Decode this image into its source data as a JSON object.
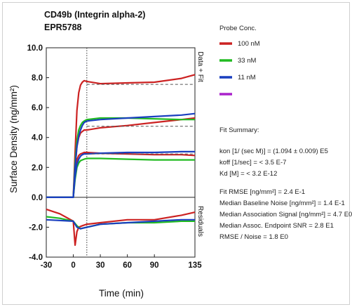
{
  "chart_data": {
    "type": "line",
    "title": "CD49b (Integrin alpha-2)",
    "subtitle": "EPR5788",
    "xlabel": "Time (min)",
    "ylabel": "Surface Density (ng/mm²)",
    "xlim": [
      -30,
      135
    ],
    "ylim": [
      -4.0,
      10.0
    ],
    "x_ticks": [
      "-30",
      "0",
      "30",
      "60",
      "90",
      "135"
    ],
    "x_tick_values": [
      -30,
      0,
      30,
      60,
      90,
      135
    ],
    "y_ticks": [
      "10.0",
      "8.0",
      "6.0",
      "4.0",
      "2.0",
      "0.0",
      "-2.0",
      "-4.0"
    ],
    "y_tick_values": [
      10,
      8,
      6,
      4,
      2,
      0,
      -2,
      -4
    ],
    "grid": false,
    "vertical_marker_x": 15,
    "zero_line_y": 0,
    "side_labels": {
      "upper": "Data + Fit",
      "lower": "Residuals"
    },
    "legend": {
      "title": "Probe Conc.",
      "entries": [
        {
          "label": "100 nM",
          "color": "#cc2222"
        },
        {
          "label": "33 nM",
          "color": "#22bb22"
        },
        {
          "label": "11 nM",
          "color": "#1a3fbf"
        },
        {
          "label": "",
          "color": "#aa22cc"
        }
      ]
    },
    "series": [
      {
        "name": "100 nM",
        "color": "#cc2222",
        "x": [
          -30,
          0,
          2,
          4,
          6,
          8,
          10,
          12,
          15,
          30,
          60,
          90,
          120,
          135
        ],
        "y": [
          0.0,
          0.0,
          3.0,
          5.8,
          7.0,
          7.5,
          7.7,
          7.8,
          7.75,
          7.6,
          7.65,
          7.7,
          7.95,
          8.2
        ]
      },
      {
        "name": "100 nM",
        "color": "#cc2222",
        "x": [
          -30,
          0,
          2,
          4,
          6,
          8,
          10,
          12,
          15,
          30,
          60,
          90,
          120,
          135
        ],
        "y": [
          0.0,
          0.0,
          2.0,
          3.4,
          4.0,
          4.3,
          4.4,
          4.5,
          4.5,
          4.65,
          4.8,
          5.0,
          5.2,
          5.3
        ]
      },
      {
        "name": "100 nM",
        "color": "#cc2222",
        "x": [
          -30,
          0,
          2,
          4,
          6,
          8,
          10,
          12,
          15,
          30,
          60,
          90,
          120,
          135
        ],
        "y": [
          0.0,
          0.0,
          1.5,
          2.5,
          2.8,
          2.9,
          2.95,
          3.0,
          3.0,
          2.95,
          2.9,
          2.85,
          2.85,
          2.8
        ]
      },
      {
        "name": "33 nM",
        "color": "#22bb22",
        "x": [
          -30,
          0,
          2,
          4,
          6,
          8,
          10,
          12,
          15,
          30,
          60,
          90,
          120,
          135
        ],
        "y": [
          0.0,
          0.0,
          2.3,
          3.8,
          4.5,
          4.8,
          5.0,
          5.1,
          5.2,
          5.3,
          5.3,
          5.25,
          5.2,
          5.2
        ]
      },
      {
        "name": "33 nM",
        "color": "#22bb22",
        "x": [
          -30,
          0,
          2,
          4,
          6,
          8,
          10,
          12,
          15,
          30,
          60,
          90,
          120,
          135
        ],
        "y": [
          0.0,
          0.0,
          1.2,
          2.0,
          2.3,
          2.45,
          2.5,
          2.55,
          2.6,
          2.6,
          2.55,
          2.5,
          2.5,
          2.5
        ]
      },
      {
        "name": "11 nM",
        "color": "#1a3fbf",
        "x": [
          -30,
          0,
          2,
          4,
          6,
          8,
          10,
          12,
          15,
          30,
          60,
          90,
          120,
          135
        ],
        "y": [
          0.0,
          0.0,
          2.0,
          3.4,
          4.1,
          4.5,
          4.8,
          5.0,
          5.1,
          5.2,
          5.3,
          5.4,
          5.5,
          5.6
        ]
      },
      {
        "name": "11 nM",
        "color": "#1a3fbf",
        "x": [
          -30,
          0,
          2,
          4,
          6,
          8,
          10,
          12,
          15,
          30,
          60,
          90,
          120,
          135
        ],
        "y": [
          0.0,
          0.0,
          1.4,
          2.2,
          2.55,
          2.75,
          2.85,
          2.9,
          2.9,
          2.95,
          3.0,
          3.0,
          3.05,
          3.05
        ]
      },
      {
        "name": "100 nM residual",
        "color": "#cc2222",
        "x": [
          -30,
          -15,
          0,
          2,
          4,
          6,
          10,
          15,
          30,
          60,
          90,
          120,
          135
        ],
        "y": [
          -0.8,
          -1.1,
          -1.6,
          -3.2,
          -2.3,
          -2.0,
          -1.9,
          -1.8,
          -1.7,
          -1.5,
          -1.5,
          -1.2,
          -1.0
        ]
      },
      {
        "name": "33 nM residual",
        "color": "#22bb22",
        "x": [
          -30,
          -15,
          0,
          4,
          8,
          15,
          30,
          60,
          90,
          120,
          135
        ],
        "y": [
          -1.3,
          -1.4,
          -1.6,
          -1.9,
          -2.1,
          -2.0,
          -1.8,
          -1.7,
          -1.7,
          -1.6,
          -1.6
        ]
      },
      {
        "name": "11 nM residual",
        "color": "#1a3fbf",
        "x": [
          -30,
          0,
          4,
          8,
          15,
          30,
          60,
          90,
          120,
          135
        ],
        "y": [
          -1.5,
          -1.6,
          -2.0,
          -2.1,
          -2.0,
          -1.8,
          -1.7,
          -1.6,
          -1.5,
          -1.5
        ]
      }
    ],
    "fits": [
      {
        "y": 7.55,
        "from": 15,
        "to": 135
      },
      {
        "y": 4.75,
        "from": 15,
        "to": 135
      },
      {
        "y": 2.9,
        "from": 15,
        "to": 135
      }
    ]
  },
  "summary": {
    "title": "Fit Summary:",
    "lines": [
      "kon  [1/ (sec M)]  =  (1.094 ± 0.009) E5",
      "koff  [1/sec]  =  < 3.5 E-7",
      "Kd  [M]  =  < 3.2 E-12",
      "",
      "Fit RMSE [ng/mm²]  =  2.4 E-1",
      "Median Baseline Noise [ng/mm²]  =  1.4 E-1",
      "Median Association Signal [ng/mm²]  =  4.7 E0",
      "Median Assoc. Endpoint SNR  =  2.8 E1",
      "RMSE / Noise  =  1.8 E0"
    ]
  }
}
